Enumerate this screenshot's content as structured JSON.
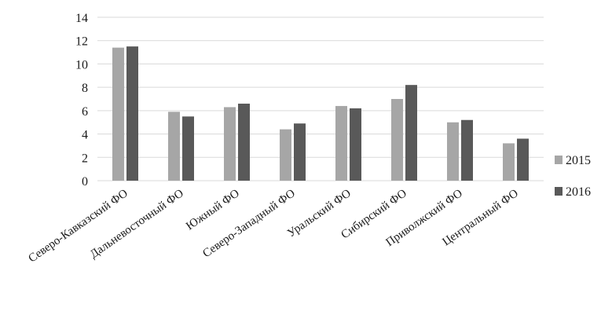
{
  "chart_data": {
    "type": "bar",
    "categories": [
      "Северо-Кавказский ФО",
      "Дальневосточный ФО",
      "Южный ФО",
      "Северо-Западный ФО",
      "Уральский ФО",
      "Сибирский ФО",
      "Приволжский ФО",
      "Центральный ФО"
    ],
    "series": [
      {
        "name": "2015",
        "color": "#a6a6a6",
        "values": [
          11.4,
          5.9,
          6.3,
          4.4,
          6.4,
          7.0,
          5.0,
          3.2
        ]
      },
      {
        "name": "2016",
        "color": "#595959",
        "values": [
          11.5,
          5.5,
          6.6,
          4.9,
          6.2,
          8.2,
          5.2,
          3.6
        ]
      }
    ],
    "yticks": [
      "0",
      "2",
      "4",
      "6",
      "8",
      "10",
      "12",
      "14"
    ],
    "ylim": [
      0,
      14
    ],
    "grid": true,
    "legend": "right"
  }
}
